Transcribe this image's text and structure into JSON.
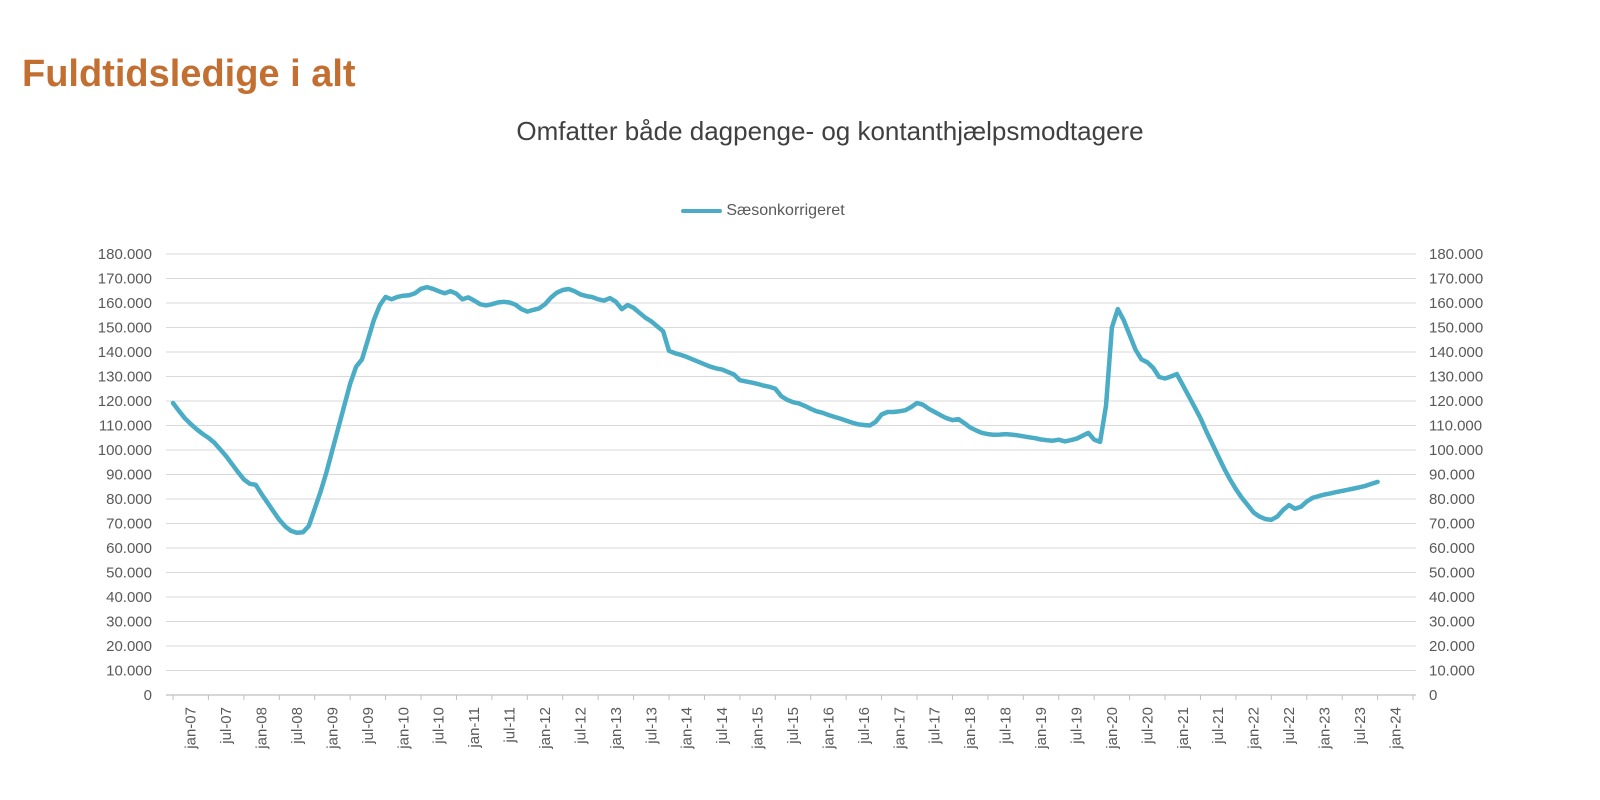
{
  "page": {
    "title": "Fuldtidsledige i alt"
  },
  "chart": {
    "subtitle": "Omfatter både dagpenge- og kontanthjælpsmodtagere",
    "legend_label": "Sæsonkorrigeret",
    "legend_color": "#4BACC6"
  },
  "colors": {
    "title": "#C36F31",
    "subtitle_text": "#404040",
    "axis_text": "#595959",
    "gridline": "#D9D9D9",
    "axis_line": "#BFBFBF",
    "series_line": "#4BACC6",
    "background": "#FFFFFF"
  },
  "chart_data": {
    "type": "line",
    "title": "Omfatter både dagpenge- og kontanthjælpsmodtagere",
    "xlabel": "",
    "ylabel": "",
    "grid": "horizontal",
    "legend_position": "top-center",
    "axes_on_both_sides": true,
    "ylim": [
      0,
      180000
    ],
    "y_tick_step": 10000,
    "y_tick_format": "thousands-dot",
    "x_tick_labels": [
      "jan-07",
      "jul-07",
      "jan-08",
      "jul-08",
      "jan-09",
      "jul-09",
      "jan-10",
      "jul-10",
      "jan-11",
      "jul-11",
      "jan-12",
      "jul-12",
      "jan-13",
      "jul-13",
      "jan-14",
      "jul-14",
      "jan-15",
      "jul-15",
      "jan-16",
      "jul-16",
      "jan-17",
      "jul-17",
      "jan-18",
      "jul-18",
      "jan-19",
      "jul-19",
      "jan-20",
      "jul-20",
      "jan-21",
      "jul-21",
      "jan-22",
      "jul-22",
      "jan-23",
      "jul-23",
      "jan-24"
    ],
    "x_monthly_start": "jan-07",
    "x_monthly_end": "jan-24",
    "series": [
      {
        "name": "Sæsonkorrigeret",
        "color": "#4BACC6",
        "values": [
          119200,
          116000,
          113000,
          110600,
          108500,
          106600,
          105000,
          103000,
          100300,
          97500,
          94200,
          91000,
          88000,
          86200,
          85800,
          82000,
          78500,
          75000,
          71500,
          68800,
          67000,
          66200,
          66400,
          69000,
          76000,
          83000,
          91000,
          100000,
          109000,
          118000,
          127000,
          134000,
          137000,
          145000,
          153000,
          159000,
          162500,
          161500,
          162500,
          163000,
          163200,
          164000,
          165800,
          166500,
          165800,
          164800,
          164000,
          164800,
          163800,
          161500,
          162300,
          161000,
          159500,
          159000,
          159500,
          160200,
          160500,
          160200,
          159300,
          157500,
          156500,
          157200,
          157800,
          159500,
          162200,
          164200,
          165300,
          165700,
          164800,
          163500,
          162800,
          162400,
          161500,
          161000,
          162000,
          160500,
          157500,
          159200,
          158000,
          156000,
          154000,
          152500,
          150500,
          148500,
          140500,
          139500,
          138800,
          138000,
          137000,
          136000,
          135000,
          134000,
          133300,
          132800,
          131800,
          130800,
          128500,
          128000,
          127500,
          127000,
          126300,
          125800,
          125000,
          122000,
          120500,
          119500,
          119000,
          118000,
          116800,
          115800,
          115200,
          114300,
          113500,
          112800,
          112000,
          111200,
          110500,
          110200,
          110000,
          111500,
          114500,
          115500,
          115500,
          115800,
          116200,
          117500,
          119200,
          118500,
          116800,
          115500,
          114200,
          113000,
          112200,
          112600,
          111000,
          109200,
          108000,
          107000,
          106500,
          106200,
          106300,
          106500,
          106300,
          106000,
          105600,
          105200,
          104800,
          104300,
          104000,
          103800,
          104200,
          103500,
          104000,
          104600,
          105800,
          107000,
          104200,
          103300,
          118000,
          150000,
          157500,
          153000,
          147000,
          141000,
          137000,
          135800,
          133500,
          129800,
          129200,
          130000,
          131000,
          126500,
          122000,
          117500,
          113000,
          107500,
          102500,
          97500,
          92500,
          88000,
          84000,
          80500,
          77500,
          74500,
          72800,
          71800,
          71500,
          72800,
          75500,
          77500,
          76000,
          76800,
          79000,
          80500,
          81200,
          81800,
          82300,
          82800,
          83300,
          83800,
          84300,
          84800,
          85400,
          86200,
          87000
        ]
      }
    ]
  }
}
